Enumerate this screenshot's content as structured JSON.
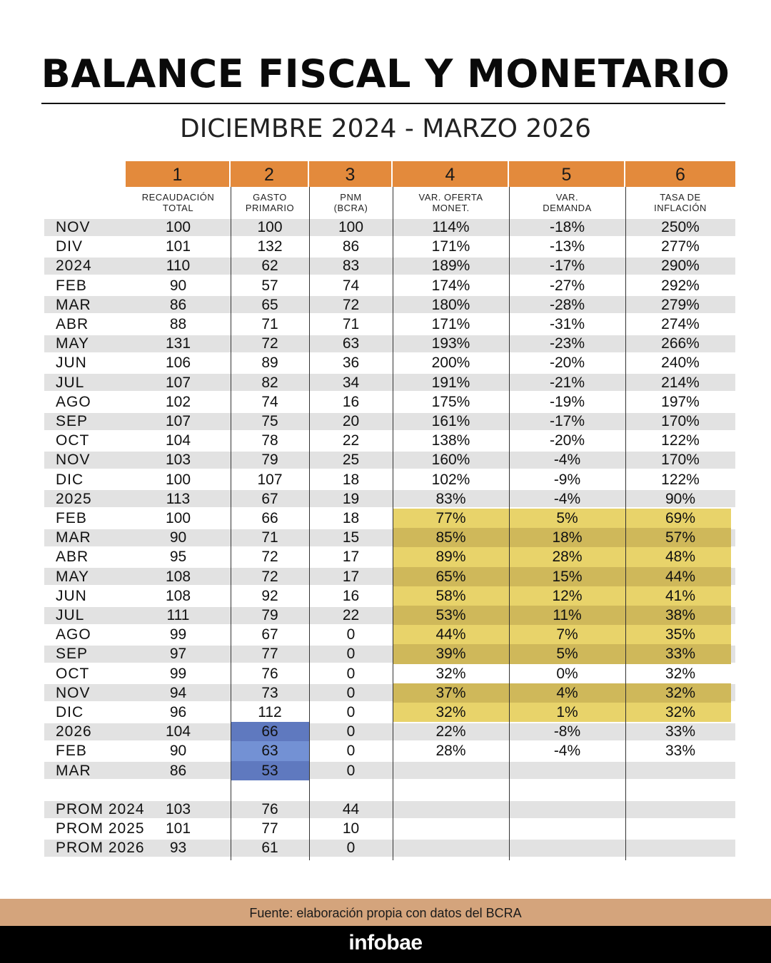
{
  "title": "BALANCE FISCAL Y MONETARIO",
  "subtitle": "DICIEMBRE 2024 - MARZO 2026",
  "footer": {
    "source": "Fuente: elaboración propia con datos del BCRA",
    "brand": "infobae"
  },
  "colors": {
    "header": "#e38a3c",
    "stripe": "#e2e2e2",
    "yellow_highlight": "#e8d36a",
    "blue_highlight": "#6b86c9",
    "footer_band": "#d4a47c"
  },
  "chart_data": {
    "type": "table",
    "columns": [
      {
        "number": "1",
        "label_lines": [
          "RECAUDACIÓN",
          "TOTAL"
        ]
      },
      {
        "number": "2",
        "label_lines": [
          "GASTO",
          "PRIMARIO"
        ]
      },
      {
        "number": "3",
        "label_lines": [
          "PNM",
          "(BCRA)"
        ]
      },
      {
        "number": "4",
        "label_lines": [
          "VAR. OFERTA",
          "MONET."
        ]
      },
      {
        "number": "5",
        "label_lines": [
          "VAR.",
          "DEMANDA"
        ]
      },
      {
        "number": "6",
        "label_lines": [
          "TASA DE",
          "INFLACIÓN"
        ]
      }
    ],
    "rows": [
      {
        "label": "NOV",
        "values": [
          "100",
          "100",
          "100",
          "114%",
          "-18%",
          "250%"
        ]
      },
      {
        "label": "DIV",
        "values": [
          "101",
          "132",
          "86",
          "171%",
          "-13%",
          "277%"
        ]
      },
      {
        "label": "2024",
        "values": [
          "110",
          "62",
          "83",
          "189%",
          "-17%",
          "290%"
        ]
      },
      {
        "label": "FEB",
        "values": [
          "90",
          "57",
          "74",
          "174%",
          "-27%",
          "292%"
        ]
      },
      {
        "label": "MAR",
        "values": [
          "86",
          "65",
          "72",
          "180%",
          "-28%",
          "279%"
        ]
      },
      {
        "label": "ABR",
        "values": [
          "88",
          "71",
          "71",
          "171%",
          "-31%",
          "274%"
        ]
      },
      {
        "label": "MAY",
        "values": [
          "131",
          "72",
          "63",
          "193%",
          "-23%",
          "266%"
        ]
      },
      {
        "label": "JUN",
        "values": [
          "106",
          "89",
          "36",
          "200%",
          "-20%",
          "240%"
        ]
      },
      {
        "label": "JUL",
        "values": [
          "107",
          "82",
          "34",
          "191%",
          "-21%",
          "214%"
        ]
      },
      {
        "label": "AGO",
        "values": [
          "102",
          "74",
          "16",
          "175%",
          "-19%",
          "197%"
        ]
      },
      {
        "label": "SEP",
        "values": [
          "107",
          "75",
          "20",
          "161%",
          "-17%",
          "170%"
        ]
      },
      {
        "label": "OCT",
        "values": [
          "104",
          "78",
          "22",
          "138%",
          "-20%",
          "122%"
        ]
      },
      {
        "label": "NOV",
        "values": [
          "103",
          "79",
          "25",
          "160%",
          "-4%",
          "170%"
        ]
      },
      {
        "label": "DIC",
        "values": [
          "100",
          "107",
          "18",
          "102%",
          "-9%",
          "122%"
        ]
      },
      {
        "label": "2025",
        "values": [
          "113",
          "67",
          "19",
          "83%",
          "-4%",
          "90%"
        ]
      },
      {
        "label": "FEB",
        "values": [
          "100",
          "66",
          "18",
          "77%",
          "5%",
          "69%"
        ]
      },
      {
        "label": "MAR",
        "values": [
          "90",
          "71",
          "15",
          "85%",
          "18%",
          "57%"
        ]
      },
      {
        "label": "ABR",
        "values": [
          "95",
          "72",
          "17",
          "89%",
          "28%",
          "48%"
        ]
      },
      {
        "label": "MAY",
        "values": [
          "108",
          "72",
          "17",
          "65%",
          "15%",
          "44%"
        ]
      },
      {
        "label": "JUN",
        "values": [
          "108",
          "92",
          "16",
          "58%",
          "12%",
          "41%"
        ]
      },
      {
        "label": "JUL",
        "values": [
          "111",
          "79",
          "22",
          "53%",
          "11%",
          "38%"
        ]
      },
      {
        "label": "AGO",
        "values": [
          "99",
          "67",
          "0",
          "44%",
          "7%",
          "35%"
        ]
      },
      {
        "label": "SEP",
        "values": [
          "97",
          "77",
          "0",
          "39%",
          "5%",
          "33%"
        ]
      },
      {
        "label": "OCT",
        "values": [
          "99",
          "76",
          "0",
          "32%",
          "0%",
          "32%"
        ]
      },
      {
        "label": "NOV",
        "values": [
          "94",
          "73",
          "0",
          "37%",
          "4%",
          "32%"
        ]
      },
      {
        "label": "DIC",
        "values": [
          "96",
          "112",
          "0",
          "32%",
          "1%",
          "32%"
        ]
      },
      {
        "label": "2026",
        "values": [
          "104",
          "66",
          "0",
          "22%",
          "-8%",
          "33%"
        ]
      },
      {
        "label": "FEB",
        "values": [
          "90",
          "63",
          "0",
          "28%",
          "-4%",
          "33%"
        ]
      },
      {
        "label": "MAR",
        "values": [
          "86",
          "53",
          "0",
          "",
          "",
          ""
        ]
      }
    ],
    "averages": [
      {
        "label": "PROM 2024",
        "values": [
          "103",
          "76",
          "44",
          "",
          "",
          ""
        ]
      },
      {
        "label": "PROM 2025",
        "values": [
          "101",
          "77",
          "10",
          "",
          "",
          ""
        ]
      },
      {
        "label": "PROM 2026",
        "values": [
          "93",
          "61",
          "0",
          "",
          "",
          ""
        ]
      }
    ],
    "highlights": [
      {
        "color": "yellow",
        "columns": [
          4,
          5,
          6
        ],
        "rows": [
          "FEB 2025",
          "MAR",
          "ABR",
          "MAY",
          "JUN",
          "JUL",
          "AGO",
          "SEP",
          "NOV",
          "DIC"
        ]
      },
      {
        "color": "blue",
        "columns": [
          2
        ],
        "rows": [
          "2026",
          "FEB",
          "MAR"
        ]
      }
    ]
  }
}
